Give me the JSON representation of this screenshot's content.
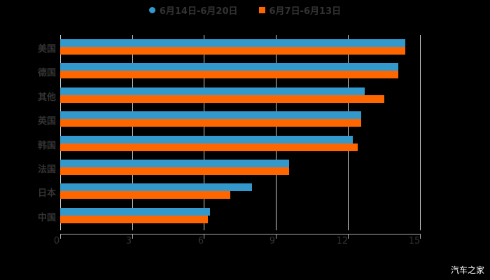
{
  "chart_data": {
    "type": "bar",
    "orientation": "horizontal",
    "title": "",
    "xlabel": "",
    "ylabel": "",
    "xlim": [
      0,
      15
    ],
    "xticks": [
      0,
      3,
      6,
      9,
      12,
      15
    ],
    "grid": true,
    "legend_position": "top",
    "categories": [
      "美国",
      "德国",
      "其他",
      "英国",
      "韩国",
      "法国",
      "日本",
      "中国"
    ],
    "series": [
      {
        "name": "6月14日-6月20日",
        "color": "#3399cc",
        "values": [
          14.4,
          14.1,
          12.7,
          12.55,
          12.2,
          9.55,
          8.0,
          6.25
        ]
      },
      {
        "name": "6月7日-6月13日",
        "color": "#ff6600",
        "values": [
          14.4,
          14.1,
          13.5,
          12.55,
          12.4,
          9.55,
          7.1,
          6.15
        ]
      }
    ]
  },
  "legend": {
    "series1": "6月14日-6月20日",
    "series2": "6月7日-6月13日"
  },
  "axis": {
    "t0": "0",
    "t3": "3",
    "t6": "6",
    "t9": "9",
    "t12": "12",
    "t15": "15"
  },
  "watermark": "汽车之家"
}
